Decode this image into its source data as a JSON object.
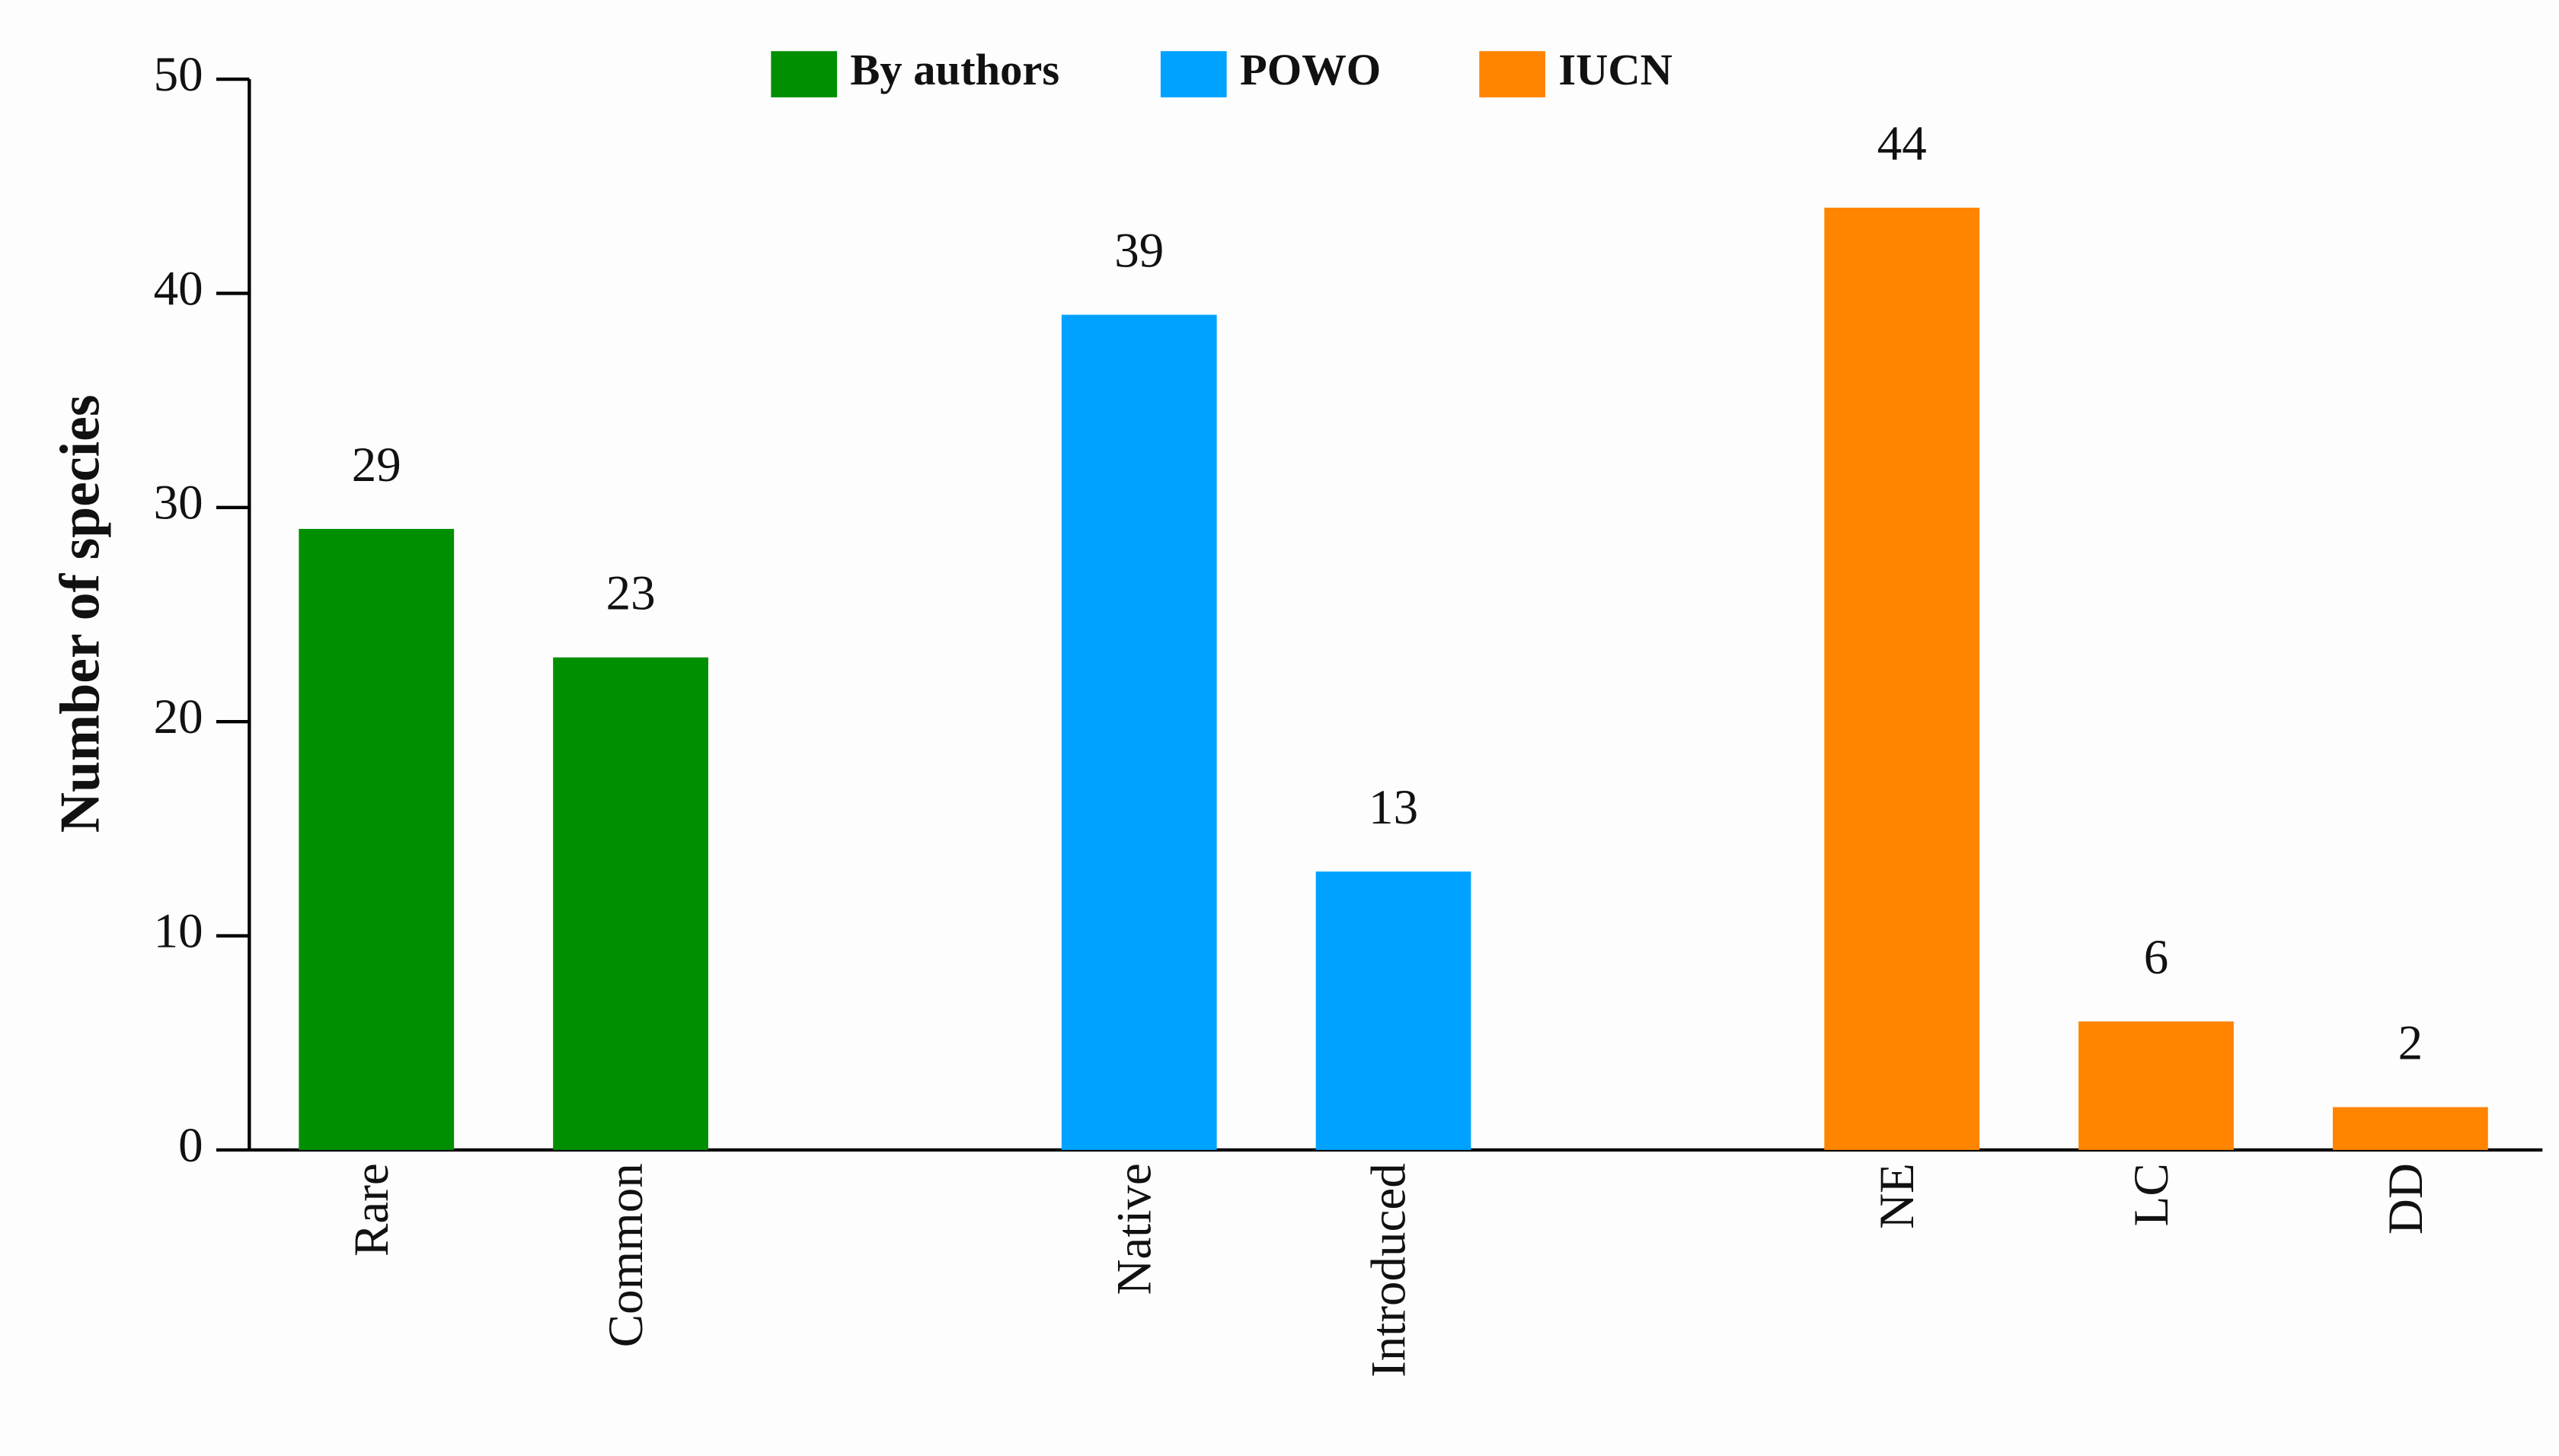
{
  "chart_data": {
    "type": "bar",
    "y_label": "Number of species",
    "categories": [
      "Rare",
      "Common",
      null,
      "Native",
      "Introduced",
      null,
      "NE",
      "LC",
      "DD"
    ],
    "series": [
      {
        "name": "By authors",
        "color": "#008f00",
        "values": [
          29,
          23,
          null,
          null,
          null,
          null,
          null,
          null,
          null
        ]
      },
      {
        "name": "POWO",
        "color": "#00a2ff",
        "values": [
          null,
          null,
          null,
          39,
          13,
          null,
          null,
          null,
          null
        ]
      },
      {
        "name": "IUCN",
        "color": "#ff8400",
        "values": [
          null,
          null,
          null,
          null,
          null,
          null,
          44,
          6,
          2
        ]
      }
    ],
    "ylim": [
      0,
      50
    ],
    "yticks": [
      0,
      10,
      20,
      30,
      40,
      50
    ],
    "legend": "top"
  }
}
